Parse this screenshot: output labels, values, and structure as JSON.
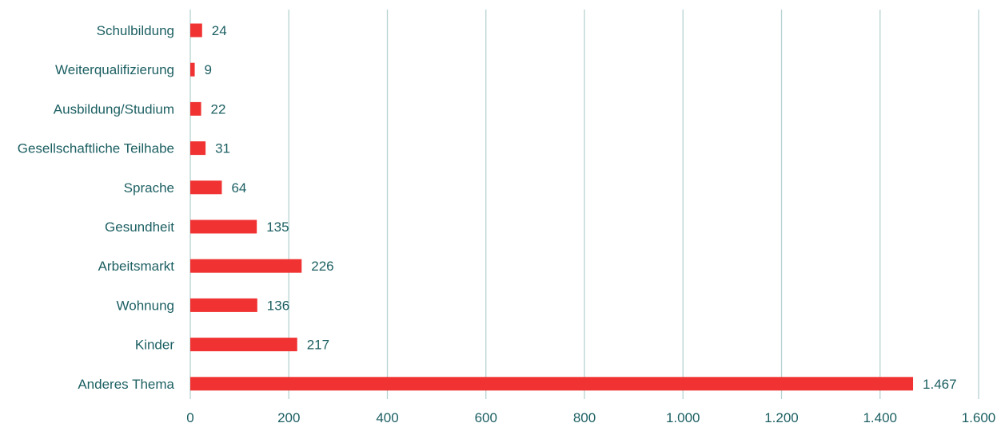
{
  "chart_data": {
    "type": "bar",
    "orientation": "horizontal",
    "categories": [
      "Schulbildung",
      "Weiterqualifizierung",
      "Ausbildung/Studium",
      "Gesellschaftliche Teilhabe",
      "Sprache",
      "Gesundheit",
      "Arbeitsmarkt",
      "Wohnung",
      "Kinder",
      "Anderes Thema"
    ],
    "values": [
      24,
      9,
      22,
      31,
      64,
      135,
      226,
      136,
      217,
      1467
    ],
    "value_labels": [
      "24",
      "9",
      "22",
      "31",
      "64",
      "135",
      "226",
      "136",
      "217",
      "1.467"
    ],
    "xlim": [
      0,
      1600
    ],
    "x_ticks": [
      0,
      200,
      400,
      600,
      800,
      1000,
      1200,
      1400,
      1600
    ],
    "x_tick_labels": [
      "0",
      "200",
      "400",
      "600",
      "800",
      "1.000",
      "1.200",
      "1.400",
      "1.600"
    ],
    "grid": "vertical",
    "legend": "none",
    "title": "",
    "xlabel": "",
    "ylabel": "",
    "colors": {
      "bar": "#f03232",
      "grid": "#b5d3d1",
      "text": "#1c5f62"
    }
  }
}
